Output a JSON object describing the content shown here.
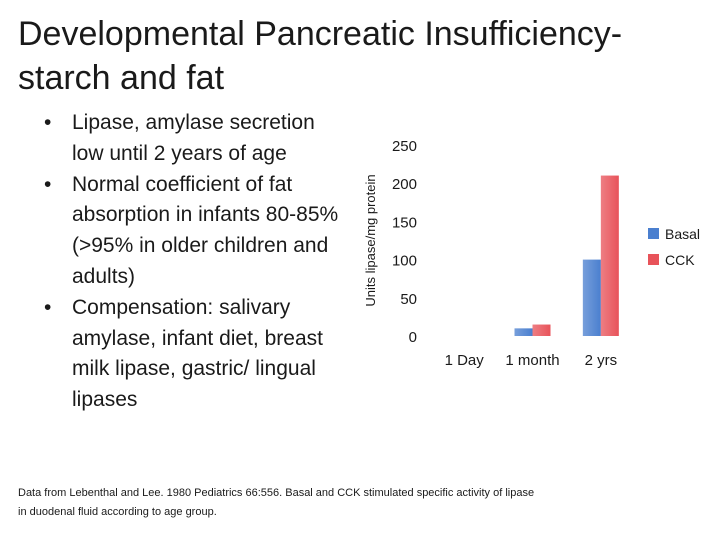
{
  "slide": {
    "title": "Developmental Pancreatic Insufficiency- starch and fat",
    "bullets": [
      "Lipase, amylase secretion low until 2 years of age",
      "Normal coefficient of fat absorption in infants 80-85% (>95% in older children and adults)",
      "Compensation: salivary amylase, infant diet, breast milk lipase, gastric/ lingual lipases"
    ],
    "footer": "Data from Lebenthal and Lee. 1980  Pediatrics 66:556.  Basal and CCK stimulated specific activity of lipase in duodenal fluid according to age group."
  },
  "colors": {
    "basal": "#4a7fcf",
    "cck": "#e8535a"
  },
  "chart_data": {
    "type": "bar",
    "categories": [
      "1 Day",
      "1 month",
      "2 yrs"
    ],
    "series": [
      {
        "name": "Basal",
        "values": [
          0,
          10,
          100
        ]
      },
      {
        "name": "CCK",
        "values": [
          0,
          15,
          210
        ]
      }
    ],
    "ylabel": "Units lipase/mg protein",
    "ylim": [
      0,
      250
    ],
    "yticks": [
      "0",
      "50",
      "100",
      "150",
      "200",
      "250"
    ],
    "grid": false,
    "legend": "right"
  }
}
